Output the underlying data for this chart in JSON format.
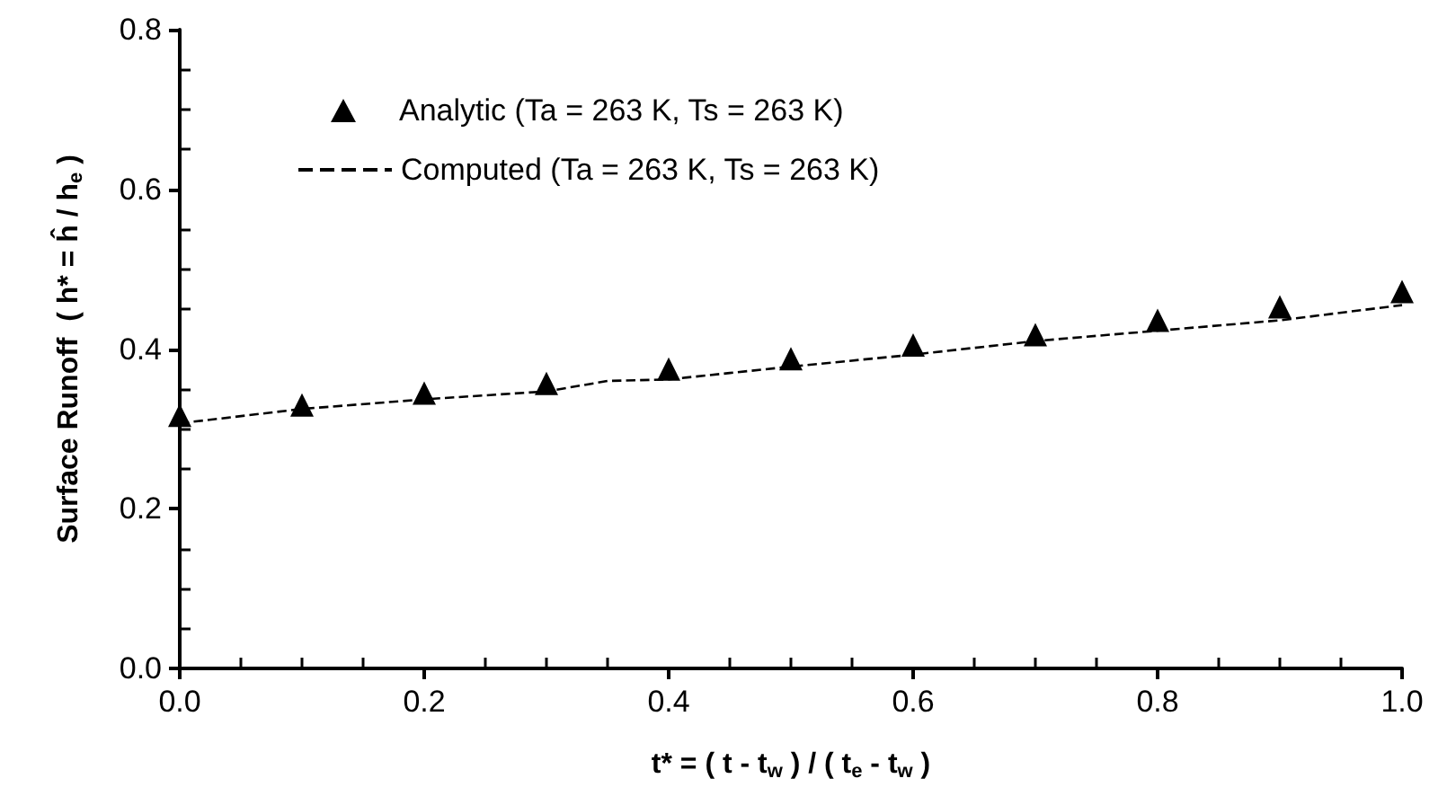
{
  "chart_data": {
    "type": "line",
    "xlabel": "t* = ( t - t$_{w}$ ) / ( t$_{e}$ - t$_{w}$ )",
    "ylabel": "Surface Runoff  ( h* = ĥ / h$_{e}$ )",
    "xlim": [
      0,
      1
    ],
    "xticks": [
      {
        "value": 0,
        "label": "0.0"
      },
      {
        "value": 0.2,
        "label": "0.2"
      },
      {
        "value": 0.4,
        "label": "0.4"
      },
      {
        "value": 0.6,
        "label": "0.6"
      },
      {
        "value": 0.8,
        "label": "0.8"
      },
      {
        "value": 1,
        "label": "1.0"
      }
    ],
    "ylim": [
      0,
      0.8
    ],
    "yticks": [
      {
        "value": 0,
        "label": "0.0"
      },
      0.2,
      0.4,
      0.6,
      0.8
    ],
    "grid": false,
    "legend": "top left",
    "series": [
      {
        "name": "Analytic (Ta = 263 K, Ts = 263 K)",
        "type": "scatter",
        "marker": "triangle",
        "color": "#000000",
        "x": [
          0,
          0.1,
          0.2,
          0.3,
          0.4,
          0.5,
          0.6,
          0.7,
          0.8,
          0.9,
          1.0
        ],
        "values": [
          0.317,
          0.33,
          0.345,
          0.357,
          0.375,
          0.388,
          0.405,
          0.418,
          0.436,
          0.453,
          0.472
        ]
      },
      {
        "name": "Computed (Ta = 263 K, Ts = 263 K)",
        "line_style": "dashed",
        "marker": "none",
        "color": "#000000",
        "x": [
          0,
          0.1,
          0.2,
          0.3,
          0.35,
          0.4,
          0.45,
          0.5,
          0.6,
          0.7,
          0.8,
          0.9,
          1.0
        ],
        "values": [
          0.307,
          0.325,
          0.337,
          0.347,
          0.36,
          0.362,
          0.37,
          0.378,
          0.393,
          0.41,
          0.423,
          0.436,
          0.455
        ]
      }
    ]
  }
}
